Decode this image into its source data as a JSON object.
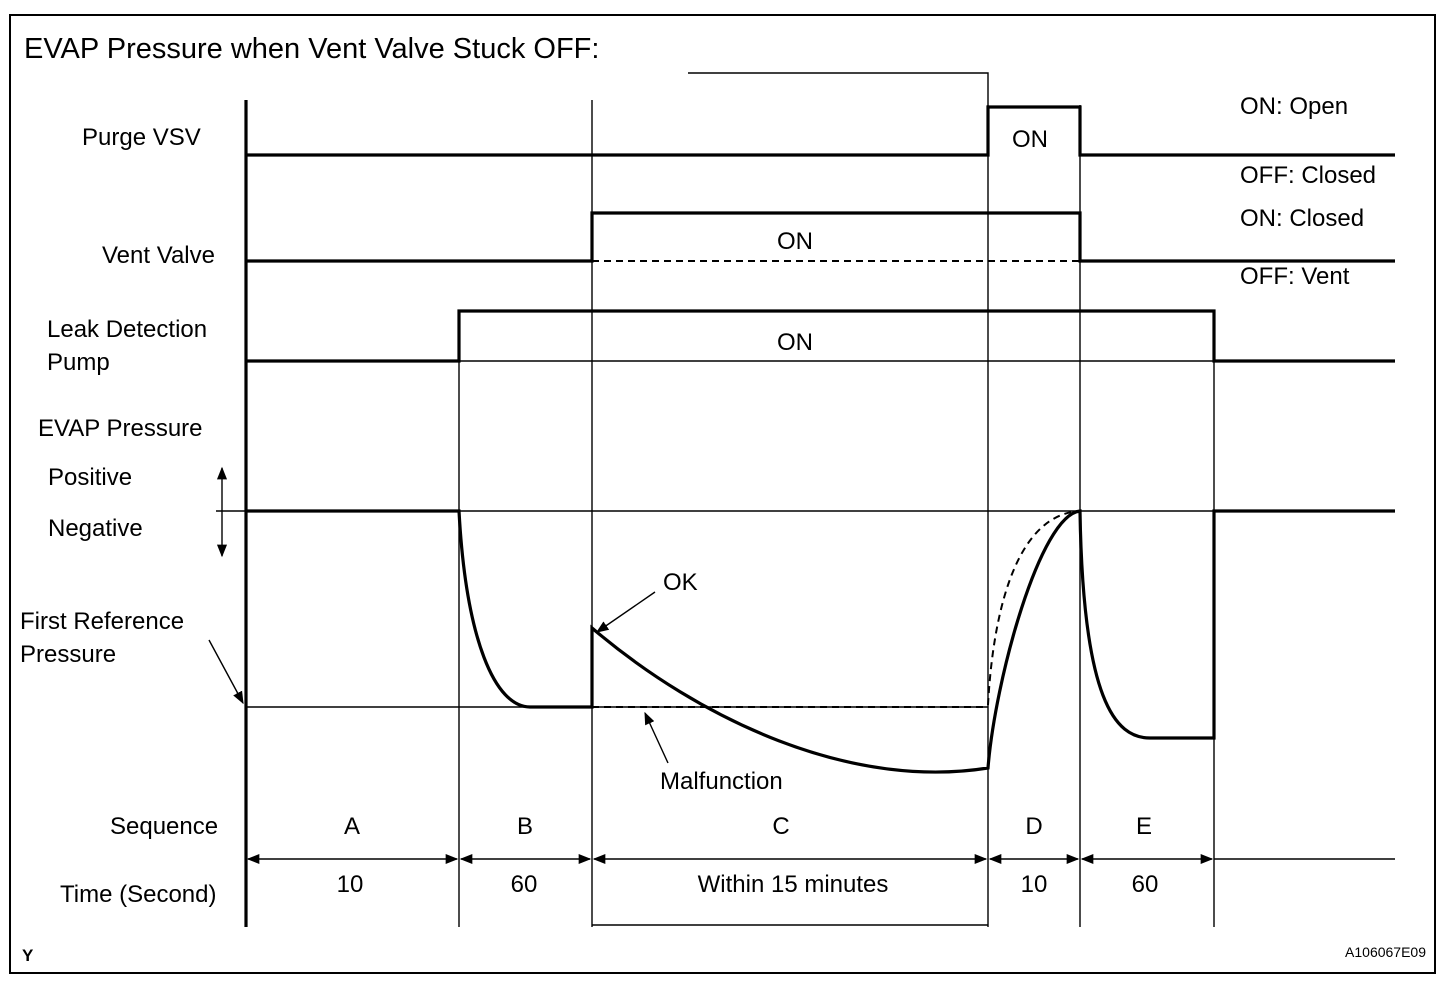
{
  "title": "EVAP Pressure when Vent Valve Stuck OFF:",
  "rows": {
    "purge_vsv": "Purge VSV",
    "vent_valve": "Vent Valve",
    "leak_pump_line1": "Leak Detection",
    "leak_pump_line2": "Pump",
    "evap_pressure": "EVAP Pressure",
    "positive": "Positive",
    "negative": "Negative",
    "first_ref_line1": "First Reference",
    "first_ref_line2": "Pressure",
    "sequence": "Sequence",
    "time": "Time (Second)"
  },
  "states": {
    "purge_on_open": "ON: Open",
    "purge_off_closed": "OFF: Closed",
    "vent_on_closed": "ON: Closed",
    "vent_off_vent": "OFF: Vent",
    "purge_on": "ON",
    "vent_on": "ON",
    "pump_on": "ON"
  },
  "annotations": {
    "ok": "OK",
    "malfunction": "Malfunction"
  },
  "sequences": [
    {
      "id": "A",
      "time": "10"
    },
    {
      "id": "B",
      "time": "60"
    },
    {
      "id": "C",
      "time": "Within 15 minutes"
    },
    {
      "id": "D",
      "time": "10"
    },
    {
      "id": "E",
      "time": "60"
    }
  ],
  "footer": {
    "left_mark": "Y",
    "figure_code": "A106067E09"
  }
}
